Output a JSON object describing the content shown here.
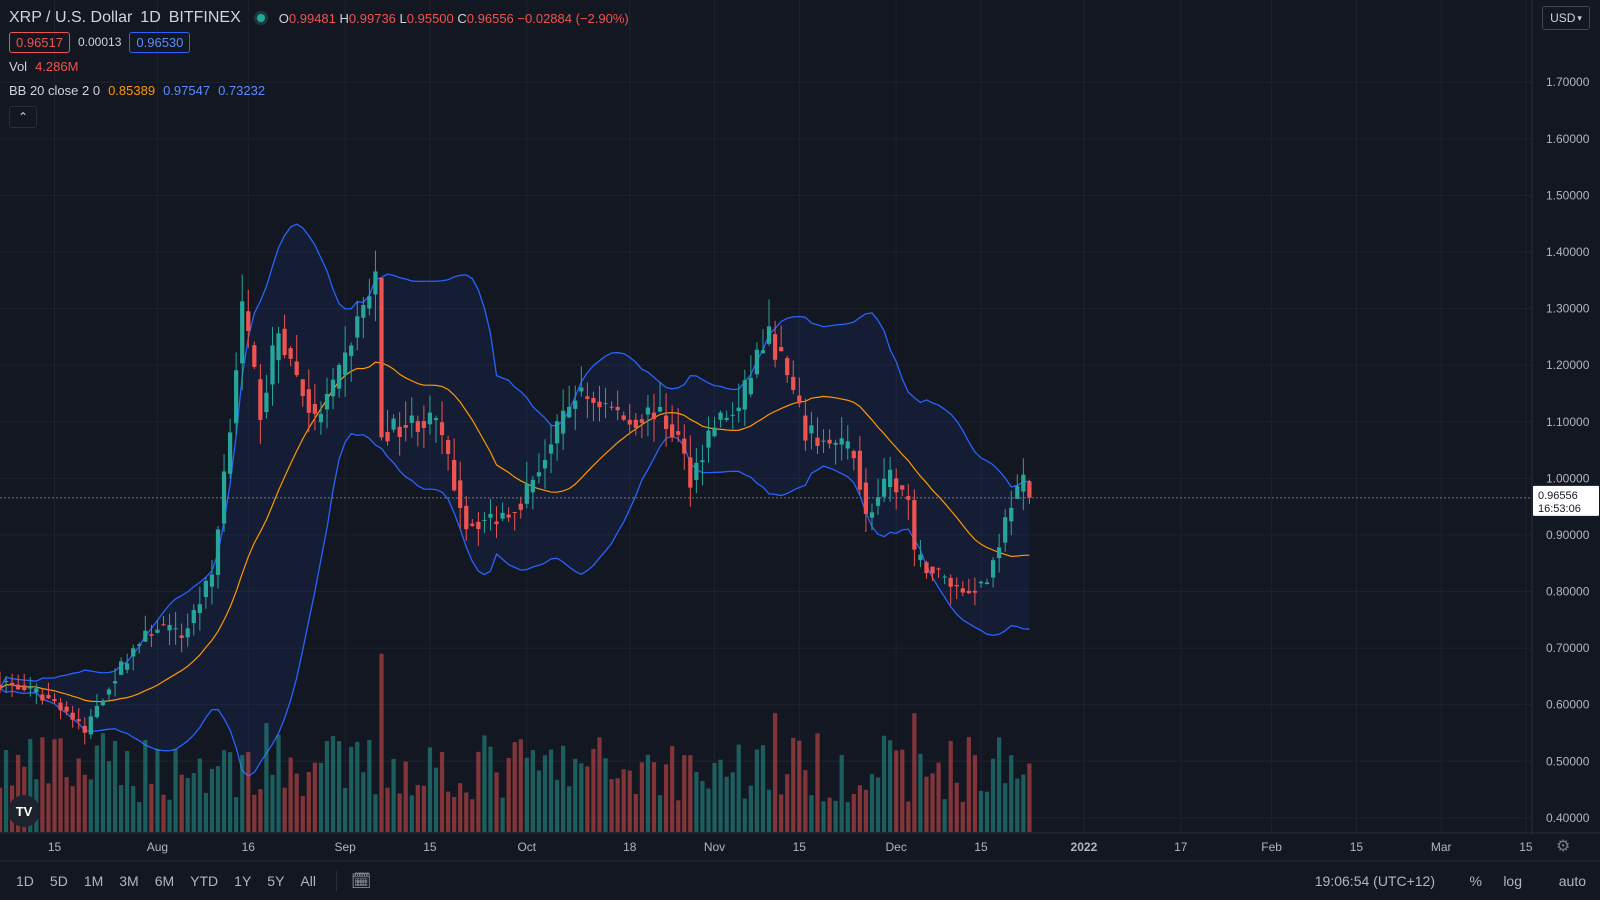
{
  "header": {
    "symbol": "XRP / U.S. Dollar",
    "interval": "1D",
    "exchange": "BITFINEX",
    "ohlc": {
      "o_label": "O",
      "o": "0.99481",
      "h_label": "H",
      "h": "0.99736",
      "l_label": "L",
      "l": "0.95500",
      "c_label": "C",
      "c": "0.96556",
      "change": "−0.02884 (−2.90%)"
    },
    "sell_price": "0.96517",
    "spread": "0.00013",
    "buy_price": "0.96530",
    "vol_label": "Vol",
    "vol_value": "4.286M",
    "bb_label": "BB 20 close 2 0",
    "bb_basis": "0.85389",
    "bb_upper": "0.97547",
    "bb_lower": "0.73232"
  },
  "currency_button": "USD",
  "last_price_label": {
    "price": "0.96556",
    "countdown": "16:53:06"
  },
  "bottom_bar": {
    "timeframes": [
      "1D",
      "5D",
      "1M",
      "3M",
      "6M",
      "YTD",
      "1Y",
      "5Y",
      "All"
    ],
    "clock": "19:06:54 (UTC+12)",
    "percent": "%",
    "log": "log",
    "auto": "auto"
  },
  "colors": {
    "up": "#26a69a",
    "down": "#ef5350",
    "bb_basis": "#ff9800",
    "bb_band": "#2962ff",
    "background": "#131722"
  },
  "icons": {
    "collapse": "chevron-up-icon",
    "tv_logo": "tradingview-logo-icon",
    "settings": "gear-icon",
    "date_range": "calendar-range-icon"
  },
  "chart_data": {
    "type": "candlestick",
    "title": "XRP / U.S. Dollar",
    "y_axis_ticks": [
      "1.70000",
      "1.60000",
      "1.50000",
      "1.40000",
      "1.30000",
      "1.20000",
      "1.10000",
      "1.00000",
      "0.90000",
      "0.80000",
      "0.70000",
      "0.60000",
      "0.50000",
      "0.40000"
    ],
    "y_range": [
      0.375,
      1.81
    ],
    "x_axis_ticks": [
      "15",
      "Aug",
      "16",
      "Sep",
      "15",
      "Oct",
      "18",
      "Nov",
      "15",
      "Dec",
      "15",
      "2022",
      "17",
      "Feb",
      "15",
      "Mar",
      "15"
    ],
    "x_range_dates": [
      "2021-07-06",
      "2022-03-16"
    ],
    "last_close": 0.96556,
    "candle_anchors": [
      {
        "date": "2021-07-06",
        "close": 0.64
      },
      {
        "date": "2021-07-12",
        "close": 0.62
      },
      {
        "date": "2021-07-16",
        "close": 0.6
      },
      {
        "date": "2021-07-20",
        "close": 0.55
      },
      {
        "date": "2021-07-22",
        "close": 0.6
      },
      {
        "date": "2021-07-28",
        "close": 0.7
      },
      {
        "date": "2021-08-01",
        "close": 0.74
      },
      {
        "date": "2021-08-05",
        "close": 0.72
      },
      {
        "date": "2021-08-10",
        "close": 0.83
      },
      {
        "date": "2021-08-13",
        "close": 1.1
      },
      {
        "date": "2021-08-15",
        "close": 1.3
      },
      {
        "date": "2021-08-18",
        "close": 1.12
      },
      {
        "date": "2021-08-21",
        "close": 1.26
      },
      {
        "date": "2021-08-24",
        "close": 1.18
      },
      {
        "date": "2021-08-27",
        "close": 1.1
      },
      {
        "date": "2021-08-31",
        "close": 1.18
      },
      {
        "date": "2021-09-03",
        "close": 1.28
      },
      {
        "date": "2021-09-06",
        "close": 1.35
      },
      {
        "date": "2021-09-07",
        "close": 1.08
      },
      {
        "date": "2021-09-12",
        "close": 1.1
      },
      {
        "date": "2021-09-16",
        "close": 1.1
      },
      {
        "date": "2021-09-21",
        "close": 0.92
      },
      {
        "date": "2021-09-26",
        "close": 0.93
      },
      {
        "date": "2021-09-30",
        "close": 0.96
      },
      {
        "date": "2021-10-05",
        "close": 1.06
      },
      {
        "date": "2021-10-09",
        "close": 1.15
      },
      {
        "date": "2021-10-14",
        "close": 1.13
      },
      {
        "date": "2021-10-18",
        "close": 1.1
      },
      {
        "date": "2021-10-22",
        "close": 1.12
      },
      {
        "date": "2021-10-26",
        "close": 1.07
      },
      {
        "date": "2021-10-28",
        "close": 1.0
      },
      {
        "date": "2021-11-01",
        "close": 1.1
      },
      {
        "date": "2021-11-05",
        "close": 1.12
      },
      {
        "date": "2021-11-08",
        "close": 1.22
      },
      {
        "date": "2021-11-10",
        "close": 1.25
      },
      {
        "date": "2021-11-12",
        "close": 1.21
      },
      {
        "date": "2021-11-16",
        "close": 1.08
      },
      {
        "date": "2021-11-20",
        "close": 1.06
      },
      {
        "date": "2021-11-24",
        "close": 1.05
      },
      {
        "date": "2021-11-26",
        "close": 0.93
      },
      {
        "date": "2021-11-30",
        "close": 1.0
      },
      {
        "date": "2021-12-03",
        "close": 0.96
      },
      {
        "date": "2021-12-04",
        "close": 0.86
      },
      {
        "date": "2021-12-08",
        "close": 0.83
      },
      {
        "date": "2021-12-12",
        "close": 0.8
      },
      {
        "date": "2021-12-16",
        "close": 0.82
      },
      {
        "date": "2021-12-20",
        "close": 0.96
      },
      {
        "date": "2021-12-22",
        "close": 0.99
      },
      {
        "date": "2021-12-23",
        "close": 0.96556
      }
    ],
    "bollinger": {
      "period": 20,
      "source": "close",
      "stddev": 2,
      "basis_last": 0.85389,
      "upper_last": 0.97547,
      "lower_last": 0.73232
    },
    "volume_last": "4.286M",
    "volume_spikes": [
      {
        "date": "2021-08-19",
        "relative": 0.55
      },
      {
        "date": "2021-09-07",
        "relative": 0.9
      },
      {
        "date": "2021-11-11",
        "relative": 0.6
      },
      {
        "date": "2021-12-04",
        "relative": 0.6
      }
    ]
  }
}
